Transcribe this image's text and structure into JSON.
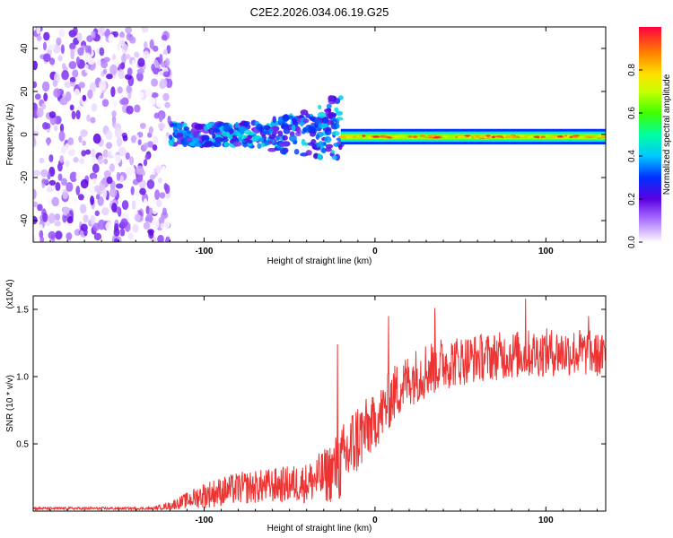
{
  "chart_data": [
    {
      "type": "heatmap",
      "title": "C2E2.2026.034.06.19.G25",
      "xlabel": "Height of straight line (km)",
      "ylabel": "Frequency (Hz)",
      "xlim": [
        -200,
        135
      ],
      "ylim": [
        -50,
        50
      ],
      "xticks": [
        -100,
        0,
        100
      ],
      "xtick_labels": [
        "-100",
        "0",
        "100"
      ],
      "yticks": [
        -40,
        -20,
        0,
        20,
        40
      ],
      "ytick_labels": [
        "-40",
        "-20",
        "0",
        "20",
        "40"
      ],
      "colorbar": {
        "label": "Normalized spectral amplitude",
        "range": [
          0,
          1
        ],
        "ticks": [
          0.0,
          0.2,
          0.4,
          0.6,
          0.8
        ],
        "tick_labels": [
          "0.0",
          "0.2",
          "0.4",
          "0.6",
          "0.8"
        ]
      },
      "regions": [
        {
          "name": "broadband noise",
          "x_range": [
            -200,
            -120
          ],
          "freq_range": [
            -50,
            50
          ],
          "amplitude": [
            0.0,
            0.2
          ]
        },
        {
          "name": "scattered signal",
          "x_range": [
            -120,
            -20
          ],
          "freq_range": [
            -10,
            20
          ],
          "amplitude": [
            0.15,
            0.45
          ]
        },
        {
          "name": "coherent carrier",
          "x_range": [
            -20,
            135
          ],
          "freq_center": -1,
          "freq_halfwidth": 3,
          "amplitude": [
            0.3,
            1.0
          ]
        }
      ]
    },
    {
      "type": "line",
      "xlabel": "Height of straight line (km)",
      "ylabel": "SNR (10 * v/v)",
      "yscale_label": "(x10^4)",
      "xlim": [
        -200,
        135
      ],
      "ylim": [
        0,
        1.6
      ],
      "xticks": [
        -100,
        0,
        100
      ],
      "xtick_labels": [
        "-100",
        "0",
        "100"
      ],
      "yticks": [
        0.5,
        1.0,
        1.5
      ],
      "ytick_labels": [
        "0.5",
        "1.0",
        "1.5"
      ],
      "color": "#ee3333",
      "envelope": {
        "x": [
          -200,
          -130,
          -120,
          -110,
          -100,
          -80,
          -60,
          -40,
          -30,
          -20,
          -15,
          -10,
          -5,
          0,
          5,
          10,
          20,
          30,
          40,
          60,
          80,
          100,
          120,
          135
        ],
        "mean": [
          0.02,
          0.02,
          0.04,
          0.08,
          0.12,
          0.17,
          0.19,
          0.21,
          0.26,
          0.34,
          0.45,
          0.55,
          0.6,
          0.66,
          0.75,
          0.86,
          0.98,
          1.05,
          1.1,
          1.14,
          1.16,
          1.18,
          1.18,
          1.15
        ],
        "spread": [
          0.01,
          0.01,
          0.03,
          0.06,
          0.1,
          0.12,
          0.13,
          0.15,
          0.2,
          0.28,
          0.3,
          0.28,
          0.24,
          0.2,
          0.22,
          0.22,
          0.2,
          0.22,
          0.2,
          0.18,
          0.18,
          0.18,
          0.18,
          0.16
        ]
      },
      "peaks": [
        {
          "x": -22,
          "y": 1.24
        },
        {
          "x": 8,
          "y": 1.45
        },
        {
          "x": 35,
          "y": 1.51
        },
        {
          "x": 88,
          "y": 1.58
        },
        {
          "x": 125,
          "y": 1.45
        }
      ]
    }
  ]
}
